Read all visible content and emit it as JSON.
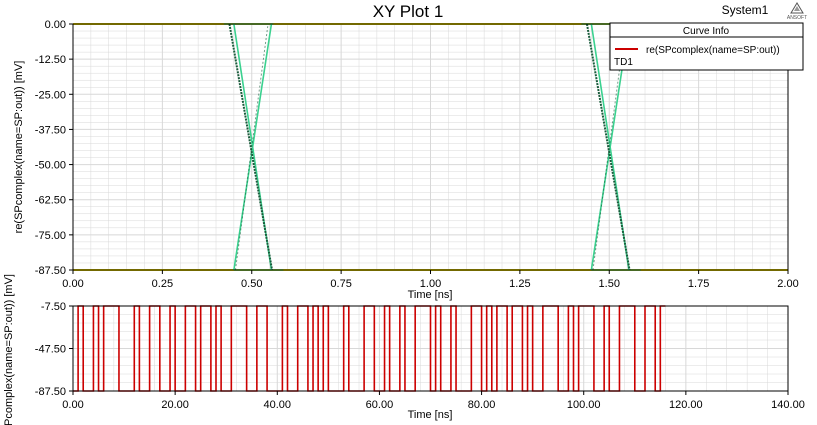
{
  "window": {
    "title": "XY Plot 1",
    "design_name": "System1",
    "logo_text": "ANSOFT"
  },
  "legend": {
    "header": "Curve Info",
    "entries": [
      {
        "label": "re(SPcomplex(name=SP:out))",
        "color": "#cc0000"
      }
    ],
    "sub_label": "TD1"
  },
  "colors": {
    "eye_dark": "#1a5c3c",
    "eye_light": "#3ad18f",
    "rail": "#e6d200",
    "signal": "#cc0000",
    "grid": "#d8d8d8",
    "background": "#ffffff",
    "border": "#000000"
  },
  "chart_data": [
    {
      "type": "line",
      "subtype": "eye-diagram",
      "xlabel": "Time [ns]",
      "ylabel": "re(SPcomplex(name=SP:out)) [mV]",
      "xlim": [
        0.0,
        2.0
      ],
      "ylim": [
        -87.5,
        0.0
      ],
      "x_ticks": [
        "0.00",
        "0.25",
        "0.50",
        "0.75",
        "1.00",
        "1.25",
        "1.50",
        "1.75",
        "2.00"
      ],
      "y_ticks": [
        "0.00",
        "-12.50",
        "-25.00",
        "-37.50",
        "-50.00",
        "-62.50",
        "-75.00",
        "-87.50"
      ],
      "rails": [
        0.0,
        -87.5
      ],
      "crossings": [
        {
          "center_ns": 0.5,
          "fast_span_ns": [
            0.46,
            0.54
          ],
          "slow_span_ns": [
            0.45,
            0.555
          ]
        },
        {
          "center_ns": 1.5,
          "fast_span_ns": [
            1.46,
            1.54
          ],
          "slow_span_ns": [
            1.45,
            1.555
          ]
        }
      ],
      "grid": true
    },
    {
      "type": "line",
      "subtype": "digital-waveform",
      "xlabel": "Time [ns]",
      "ylabel": "Pcomplex(name=SP:out)) [mV]",
      "xlim": [
        0.0,
        140.0
      ],
      "ylim": [
        -87.5,
        -7.5
      ],
      "x_ticks": [
        "0.00",
        "20.00",
        "40.00",
        "60.00",
        "80.00",
        "100.00",
        "120.00",
        "140.00"
      ],
      "y_ticks": [
        "-7.50",
        "-47.50",
        "-87.50"
      ],
      "high_level": -7.5,
      "low_level": -87.5,
      "end_ns": 127.0,
      "bit_period_ns": 1.0,
      "bits": "01001011100010011001001101101001110011000100110101000100011001001001110100100011010110110100111001011100100111001101",
      "grid": true
    }
  ]
}
